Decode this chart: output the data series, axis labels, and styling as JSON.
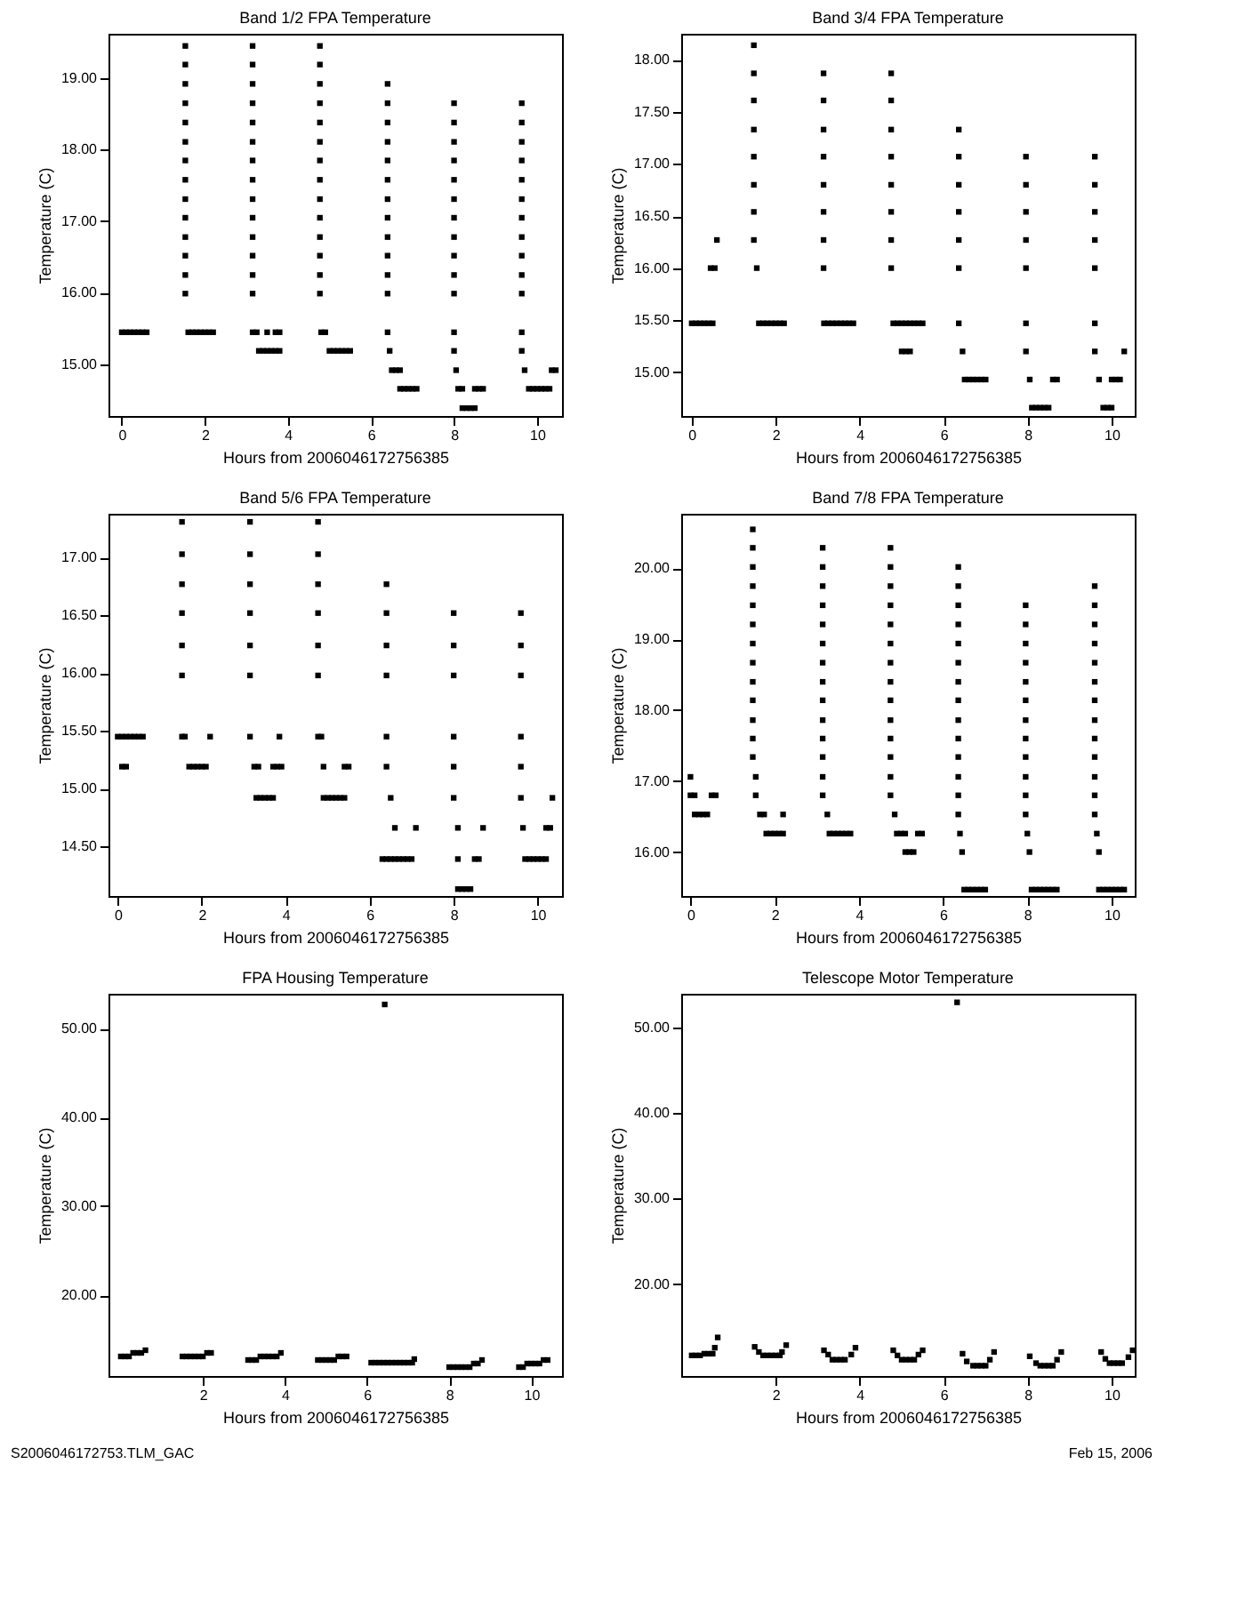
{
  "chart_data": [
    {
      "type": "scatter",
      "title": "Band 1/2 FPA Temperature",
      "xlabel": "Hours from 2006046172756385",
      "ylabel": "Temperature (C)",
      "marker": "square",
      "xlim": [
        -0.32,
        10.6
      ],
      "ylim": [
        14.28,
        19.62
      ],
      "xticks": [
        0,
        2,
        4,
        6,
        8,
        10
      ],
      "yticks": [
        {
          "value": 15,
          "label": "15.00"
        },
        {
          "value": 16,
          "label": "16.00"
        },
        {
          "value": 17,
          "label": "17.00"
        },
        {
          "value": 18,
          "label": "18.00"
        },
        {
          "value": 19,
          "label": "19.00"
        }
      ],
      "series": [
        {
          "color": "#000000",
          "x": [
            0,
            0.1,
            0.2,
            0.3,
            0.4,
            0.5,
            0.6
          ],
          "values": [
            15.45,
            15.45,
            15.45,
            15.45,
            15.45,
            15.45,
            15.45
          ]
        },
        {
          "color": "#000000",
          "x": [
            1.53,
            1.53,
            1.53,
            1.53,
            1.53,
            1.53,
            1.53,
            1.53,
            1.53,
            1.53,
            1.53,
            1.53,
            1.53,
            1.53
          ],
          "values": [
            19.45,
            19.19,
            18.92,
            18.65,
            18.38,
            18.11,
            17.85,
            17.58,
            17.31,
            17.05,
            16.78,
            16.52,
            16.25,
            15.99
          ]
        },
        {
          "color": "#000000",
          "x": [
            1.6,
            1.7,
            1.8,
            1.9,
            2.0,
            2.1,
            2.2
          ],
          "values": [
            15.45,
            15.45,
            15.45,
            15.45,
            15.45,
            15.45,
            15.45
          ]
        },
        {
          "color": "#000000",
          "x": [
            3.15,
            3.15,
            3.15,
            3.15,
            3.15,
            3.15,
            3.15,
            3.15,
            3.15,
            3.15,
            3.15,
            3.15,
            3.15,
            3.15
          ],
          "values": [
            19.45,
            19.19,
            18.92,
            18.65,
            18.38,
            18.11,
            17.85,
            17.58,
            17.31,
            17.05,
            16.78,
            16.52,
            16.25,
            15.99
          ]
        },
        {
          "color": "#000000",
          "x": [
            3.15,
            3.25,
            3.5,
            3.7,
            3.8
          ],
          "values": [
            15.45,
            15.45,
            15.45,
            15.45,
            15.45
          ]
        },
        {
          "color": "#000000",
          "x": [
            3.3,
            3.4,
            3.5,
            3.6,
            3.7,
            3.8
          ],
          "values": [
            15.19,
            15.19,
            15.19,
            15.19,
            15.19,
            15.19
          ]
        },
        {
          "color": "#000000",
          "x": [
            4.77,
            4.77,
            4.77,
            4.77,
            4.77,
            4.77,
            4.77,
            4.77,
            4.77,
            4.77,
            4.77,
            4.77,
            4.77,
            4.77
          ],
          "values": [
            19.45,
            19.19,
            18.92,
            18.65,
            18.38,
            18.11,
            17.85,
            17.58,
            17.31,
            17.05,
            16.78,
            16.52,
            16.25,
            15.99
          ]
        },
        {
          "color": "#000000",
          "x": [
            4.8,
            4.9
          ],
          "values": [
            15.45,
            15.45
          ]
        },
        {
          "color": "#000000",
          "x": [
            5.0,
            5.1,
            5.2,
            5.3,
            5.4,
            5.5
          ],
          "values": [
            15.19,
            15.19,
            15.19,
            15.19,
            15.19,
            15.19
          ]
        },
        {
          "color": "#000000",
          "x": [
            6.4,
            6.4,
            6.4,
            6.4,
            6.4,
            6.4,
            6.4,
            6.4,
            6.4,
            6.4,
            6.4,
            6.4,
            6.4
          ],
          "values": [
            18.92,
            18.65,
            18.38,
            18.11,
            17.85,
            17.58,
            17.31,
            17.05,
            16.78,
            16.52,
            16.25,
            15.99,
            15.45
          ]
        },
        {
          "color": "#000000",
          "x": [
            6.45
          ],
          "values": [
            15.19
          ]
        },
        {
          "color": "#000000",
          "x": [
            6.5,
            6.6,
            6.7
          ],
          "values": [
            14.92,
            14.92,
            14.92
          ]
        },
        {
          "color": "#000000",
          "x": [
            6.7,
            6.8,
            6.9,
            7.0,
            7.1
          ],
          "values": [
            14.66,
            14.66,
            14.66,
            14.66,
            14.66
          ]
        },
        {
          "color": "#000000",
          "x": [
            8.0,
            8.0,
            8.0,
            8.0,
            8.0,
            8.0,
            8.0,
            8.0,
            8.0,
            8.0,
            8.0,
            8.0,
            8.0
          ],
          "values": [
            18.65,
            18.38,
            18.11,
            17.85,
            17.58,
            17.31,
            17.05,
            16.78,
            16.52,
            16.25,
            15.99,
            15.45,
            15.19
          ]
        },
        {
          "color": "#000000",
          "x": [
            8.05
          ],
          "values": [
            14.92
          ]
        },
        {
          "color": "#000000",
          "x": [
            8.1,
            8.2,
            8.5,
            8.6,
            8.7
          ],
          "values": [
            14.66,
            14.66,
            14.66,
            14.66,
            14.66
          ]
        },
        {
          "color": "#000000",
          "x": [
            8.2,
            8.3,
            8.4,
            8.5
          ],
          "values": [
            14.39,
            14.39,
            14.39,
            14.39
          ]
        },
        {
          "color": "#000000",
          "x": [
            9.63,
            9.63,
            9.63,
            9.63,
            9.63,
            9.63,
            9.63,
            9.63,
            9.63,
            9.63,
            9.63,
            9.63,
            9.63
          ],
          "values": [
            18.65,
            18.38,
            18.11,
            17.85,
            17.58,
            17.31,
            17.05,
            16.78,
            16.52,
            16.25,
            15.99,
            15.45,
            15.19
          ]
        },
        {
          "color": "#000000",
          "x": [
            9.7
          ],
          "values": [
            14.92
          ]
        },
        {
          "color": "#000000",
          "x": [
            9.8,
            9.9,
            10.0,
            10.1,
            10.2,
            10.3
          ],
          "values": [
            14.66,
            14.66,
            14.66,
            14.66,
            14.66,
            14.66
          ]
        },
        {
          "color": "#000000",
          "x": [
            10.35,
            10.45
          ],
          "values": [
            14.92,
            14.92
          ]
        }
      ]
    },
    {
      "type": "scatter",
      "title": "Band 3/4 FPA Temperature",
      "xlabel": "Hours from 2006046172756385",
      "ylabel": "Temperature (C)",
      "marker": "square",
      "xlim": [
        -0.25,
        10.55
      ],
      "ylim": [
        14.58,
        18.25
      ],
      "xticks": [
        0,
        2,
        4,
        6,
        8,
        10
      ],
      "yticks": [
        {
          "value": 15,
          "label": "15.00"
        },
        {
          "value": 15.5,
          "label": "15.50"
        },
        {
          "value": 16,
          "label": "16.00"
        },
        {
          "value": 16.5,
          "label": "16.50"
        },
        {
          "value": 17,
          "label": "17.00"
        },
        {
          "value": 17.5,
          "label": "17.50"
        },
        {
          "value": 18,
          "label": "18.00"
        }
      ],
      "series": [
        {
          "color": "#000000",
          "x": [
            0,
            0.1,
            0.2,
            0.3,
            0.4,
            0.5
          ],
          "values": [
            15.47,
            15.47,
            15.47,
            15.47,
            15.47,
            15.47
          ]
        },
        {
          "color": "#000000",
          "x": [
            0.45,
            0.55
          ],
          "values": [
            16.0,
            16.0
          ]
        },
        {
          "color": "#000000",
          "x": [
            0.6
          ],
          "values": [
            16.27
          ]
        },
        {
          "color": "#000000",
          "x": [
            1.48,
            1.48,
            1.48,
            1.48,
            1.48,
            1.48,
            1.48,
            1.48
          ],
          "values": [
            18.14,
            17.87,
            17.61,
            17.33,
            17.07,
            16.8,
            16.54,
            16.27
          ]
        },
        {
          "color": "#000000",
          "x": [
            1.55
          ],
          "values": [
            16.0
          ]
        },
        {
          "color": "#000000",
          "x": [
            1.6,
            1.7,
            1.8,
            1.9,
            2.0,
            2.1,
            2.2
          ],
          "values": [
            15.47,
            15.47,
            15.47,
            15.47,
            15.47,
            15.47,
            15.47
          ]
        },
        {
          "color": "#000000",
          "x": [
            3.14,
            3.14,
            3.14,
            3.14,
            3.14,
            3.14,
            3.14,
            3.14
          ],
          "values": [
            17.87,
            17.61,
            17.33,
            17.07,
            16.8,
            16.54,
            16.27,
            16.0
          ]
        },
        {
          "color": "#000000",
          "x": [
            3.15,
            3.25,
            3.35,
            3.45,
            3.55,
            3.65,
            3.75,
            3.85
          ],
          "values": [
            15.47,
            15.47,
            15.47,
            15.47,
            15.47,
            15.47,
            15.47,
            15.47
          ]
        },
        {
          "color": "#000000",
          "x": [
            4.75,
            4.75,
            4.75,
            4.75,
            4.75,
            4.75,
            4.75,
            4.75
          ],
          "values": [
            17.87,
            17.61,
            17.33,
            17.07,
            16.8,
            16.54,
            16.27,
            16.0
          ]
        },
        {
          "color": "#000000",
          "x": [
            4.8,
            4.9,
            5.0,
            5.1,
            5.2,
            5.3,
            5.4,
            5.5
          ],
          "values": [
            15.47,
            15.47,
            15.47,
            15.47,
            15.47,
            15.47,
            15.47,
            15.47
          ]
        },
        {
          "color": "#000000",
          "x": [
            5.0,
            5.1,
            5.2
          ],
          "values": [
            15.2,
            15.2,
            15.2
          ]
        },
        {
          "color": "#000000",
          "x": [
            6.36,
            6.36,
            6.36,
            6.36,
            6.36,
            6.36,
            6.36
          ],
          "values": [
            17.33,
            17.07,
            16.8,
            16.54,
            16.27,
            16.0,
            15.47
          ]
        },
        {
          "color": "#000000",
          "x": [
            6.45
          ],
          "values": [
            15.2
          ]
        },
        {
          "color": "#000000",
          "x": [
            6.5,
            6.6,
            6.7,
            6.8,
            6.9,
            7.0
          ],
          "values": [
            14.93,
            14.93,
            14.93,
            14.93,
            14.93,
            14.93
          ]
        },
        {
          "color": "#000000",
          "x": [
            7.96,
            7.96,
            7.96,
            7.96,
            7.96,
            7.96,
            7.96
          ],
          "values": [
            17.07,
            16.8,
            16.54,
            16.27,
            16.0,
            15.47,
            15.2
          ]
        },
        {
          "color": "#000000",
          "x": [
            8.05,
            8.6,
            8.7
          ],
          "values": [
            14.93,
            14.93,
            14.93
          ]
        },
        {
          "color": "#000000",
          "x": [
            8.1,
            8.2,
            8.3,
            8.4,
            8.5
          ],
          "values": [
            14.66,
            14.66,
            14.66,
            14.66,
            14.66
          ]
        },
        {
          "color": "#000000",
          "x": [
            9.6,
            9.6,
            9.6,
            9.6,
            9.6,
            9.6,
            9.6
          ],
          "values": [
            17.07,
            16.8,
            16.54,
            16.27,
            16.0,
            15.47,
            15.2
          ]
        },
        {
          "color": "#000000",
          "x": [
            9.7,
            10.0,
            10.1,
            10.2
          ],
          "values": [
            14.93,
            14.93,
            14.93,
            14.93
          ]
        },
        {
          "color": "#000000",
          "x": [
            9.8,
            9.9,
            10.0
          ],
          "values": [
            14.66,
            14.66,
            14.66
          ]
        },
        {
          "color": "#000000",
          "x": [
            10.3
          ],
          "values": [
            15.2
          ]
        }
      ]
    },
    {
      "type": "scatter",
      "title": "Band 5/6 FPA Temperature",
      "xlabel": "Hours from 2006046172756385",
      "ylabel": "Temperature (C)",
      "marker": "square",
      "xlim": [
        -0.22,
        10.58
      ],
      "ylim": [
        14.07,
        17.38
      ],
      "xticks": [
        0,
        2,
        4,
        6,
        8,
        10
      ],
      "yticks": [
        {
          "value": 14.5,
          "label": "14.50"
        },
        {
          "value": 15,
          "label": "15.00"
        },
        {
          "value": 15.5,
          "label": "15.50"
        },
        {
          "value": 16,
          "label": "16.00"
        },
        {
          "value": 16.5,
          "label": "16.50"
        },
        {
          "value": 17,
          "label": "17.00"
        }
      ],
      "series": [
        {
          "color": "#000000",
          "x": [
            0,
            0.1,
            0.2,
            0.3,
            0.4,
            0.5,
            0.6
          ],
          "values": [
            15.45,
            15.45,
            15.45,
            15.45,
            15.45,
            15.45,
            15.45
          ]
        },
        {
          "color": "#000000",
          "x": [
            0.1,
            0.2
          ],
          "values": [
            15.19,
            15.19
          ]
        },
        {
          "color": "#000000",
          "x": [
            1.53,
            1.53,
            1.53,
            1.53,
            1.53,
            1.53,
            1.53
          ],
          "values": [
            17.31,
            17.03,
            16.77,
            16.52,
            16.24,
            15.98,
            15.45
          ]
        },
        {
          "color": "#000000",
          "x": [
            1.6,
            2.2
          ],
          "values": [
            15.45,
            15.45
          ]
        },
        {
          "color": "#000000",
          "x": [
            1.7,
            1.8,
            1.9,
            2.0,
            2.1
          ],
          "values": [
            15.19,
            15.19,
            15.19,
            15.19,
            15.19
          ]
        },
        {
          "color": "#000000",
          "x": [
            3.15,
            3.15,
            3.15,
            3.15,
            3.15,
            3.15,
            3.15
          ],
          "values": [
            17.31,
            17.03,
            16.77,
            16.52,
            16.24,
            15.98,
            15.45
          ]
        },
        {
          "color": "#000000",
          "x": [
            3.85
          ],
          "values": [
            15.45
          ]
        },
        {
          "color": "#000000",
          "x": [
            3.25,
            3.35,
            3.7,
            3.8,
            3.9
          ],
          "values": [
            15.19,
            15.19,
            15.19,
            15.19,
            15.19
          ]
        },
        {
          "color": "#000000",
          "x": [
            3.3,
            3.4,
            3.5,
            3.6,
            3.7
          ],
          "values": [
            14.92,
            14.92,
            14.92,
            14.92,
            14.92
          ]
        },
        {
          "color": "#000000",
          "x": [
            4.77,
            4.77,
            4.77,
            4.77,
            4.77,
            4.77,
            4.77
          ],
          "values": [
            17.31,
            17.03,
            16.77,
            16.52,
            16.24,
            15.98,
            15.45
          ]
        },
        {
          "color": "#000000",
          "x": [
            4.85
          ],
          "values": [
            15.45
          ]
        },
        {
          "color": "#000000",
          "x": [
            4.9,
            5.4,
            5.5
          ],
          "values": [
            15.19,
            15.19,
            15.19
          ]
        },
        {
          "color": "#000000",
          "x": [
            4.9,
            5.0,
            5.1,
            5.2,
            5.3,
            5.4
          ],
          "values": [
            14.92,
            14.92,
            14.92,
            14.92,
            14.92,
            14.92
          ]
        },
        {
          "color": "#000000",
          "x": [
            6.4,
            6.4,
            6.4,
            6.4,
            6.4,
            6.4
          ],
          "values": [
            16.77,
            16.52,
            16.24,
            15.98,
            15.45,
            15.19
          ]
        },
        {
          "color": "#000000",
          "x": [
            6.5
          ],
          "values": [
            14.92
          ]
        },
        {
          "color": "#000000",
          "x": [
            6.6,
            7.1
          ],
          "values": [
            14.66,
            14.66
          ]
        },
        {
          "color": "#000000",
          "x": [
            6.3,
            6.4,
            6.5,
            6.6,
            6.7,
            6.8,
            6.9,
            7.0
          ],
          "values": [
            14.39,
            14.39,
            14.39,
            14.39,
            14.39,
            14.39,
            14.39,
            14.39
          ]
        },
        {
          "color": "#000000",
          "x": [
            8.0,
            8.0,
            8.0,
            8.0,
            8.0,
            8.0
          ],
          "values": [
            16.52,
            16.24,
            15.98,
            15.45,
            15.19,
            14.92
          ]
        },
        {
          "color": "#000000",
          "x": [
            8.1,
            8.7
          ],
          "values": [
            14.66,
            14.66
          ]
        },
        {
          "color": "#000000",
          "x": [
            8.1,
            8.5,
            8.6
          ],
          "values": [
            14.39,
            14.39,
            14.39
          ]
        },
        {
          "color": "#000000",
          "x": [
            8.1,
            8.2,
            8.3,
            8.4
          ],
          "values": [
            14.13,
            14.13,
            14.13,
            14.13
          ]
        },
        {
          "color": "#000000",
          "x": [
            9.6,
            9.6,
            9.6,
            9.6,
            9.6,
            9.6
          ],
          "values": [
            16.52,
            16.24,
            15.98,
            15.45,
            15.19,
            14.92
          ]
        },
        {
          "color": "#000000",
          "x": [
            9.65,
            10.2,
            10.3
          ],
          "values": [
            14.66,
            14.66,
            14.66
          ]
        },
        {
          "color": "#000000",
          "x": [
            10.35
          ],
          "values": [
            14.92
          ]
        },
        {
          "color": "#000000",
          "x": [
            9.7,
            9.8,
            9.9,
            10.0,
            10.1,
            10.2
          ],
          "values": [
            14.39,
            14.39,
            14.39,
            14.39,
            14.39,
            14.39
          ]
        }
      ]
    },
    {
      "type": "scatter",
      "title": "Band 7/8 FPA Temperature",
      "xlabel": "Hours from 2006046172756385",
      "ylabel": "Temperature (C)",
      "marker": "square",
      "xlim": [
        -0.22,
        10.55
      ],
      "ylim": [
        15.38,
        20.77
      ],
      "xticks": [
        0,
        2,
        4,
        6,
        8,
        10
      ],
      "yticks": [
        {
          "value": 16,
          "label": "16.00"
        },
        {
          "value": 17,
          "label": "17.00"
        },
        {
          "value": 18,
          "label": "18.00"
        },
        {
          "value": 19,
          "label": "19.00"
        },
        {
          "value": 20,
          "label": "20.00"
        }
      ],
      "series": [
        {
          "color": "#000000",
          "x": [
            0
          ],
          "values": [
            17.06
          ]
        },
        {
          "color": "#000000",
          "x": [
            0,
            0.1,
            0.5,
            0.6
          ],
          "values": [
            16.8,
            16.8,
            16.8,
            16.8
          ]
        },
        {
          "color": "#000000",
          "x": [
            0.1,
            0.2,
            0.3,
            0.4
          ],
          "values": [
            16.53,
            16.53,
            16.53,
            16.53
          ]
        },
        {
          "color": "#000000",
          "x": [
            1.48,
            1.48,
            1.48,
            1.48,
            1.48,
            1.48,
            1.48,
            1.48,
            1.48,
            1.48,
            1.48,
            1.48,
            1.48
          ],
          "values": [
            20.55,
            20.29,
            20.02,
            19.75,
            19.48,
            19.21,
            18.94,
            18.67,
            18.4,
            18.14,
            17.86,
            17.6,
            17.34
          ]
        },
        {
          "color": "#000000",
          "x": [
            1.55,
            1.55
          ],
          "values": [
            17.06,
            16.8
          ]
        },
        {
          "color": "#000000",
          "x": [
            1.65,
            1.75,
            2.2
          ],
          "values": [
            16.53,
            16.53,
            16.53
          ]
        },
        {
          "color": "#000000",
          "x": [
            1.8,
            1.9,
            2.0,
            2.1,
            2.2
          ],
          "values": [
            16.26,
            16.26,
            16.26,
            16.26,
            16.26
          ]
        },
        {
          "color": "#000000",
          "x": [
            3.14,
            3.14,
            3.14,
            3.14,
            3.14,
            3.14,
            3.14,
            3.14,
            3.14,
            3.14,
            3.14,
            3.14,
            3.14,
            3.14
          ],
          "values": [
            20.29,
            20.02,
            19.75,
            19.48,
            19.21,
            18.94,
            18.67,
            18.4,
            18.14,
            17.86,
            17.6,
            17.34,
            17.06,
            16.8
          ]
        },
        {
          "color": "#000000",
          "x": [
            3.25
          ],
          "values": [
            16.53
          ]
        },
        {
          "color": "#000000",
          "x": [
            3.3,
            3.4,
            3.5,
            3.6,
            3.7,
            3.8
          ],
          "values": [
            16.26,
            16.26,
            16.26,
            16.26,
            16.26,
            16.26
          ]
        },
        {
          "color": "#000000",
          "x": [
            4.75,
            4.75,
            4.75,
            4.75,
            4.75,
            4.75,
            4.75,
            4.75,
            4.75,
            4.75,
            4.75,
            4.75,
            4.75,
            4.75
          ],
          "values": [
            20.29,
            20.02,
            19.75,
            19.48,
            19.21,
            18.94,
            18.67,
            18.4,
            18.14,
            17.86,
            17.6,
            17.34,
            17.06,
            16.8
          ]
        },
        {
          "color": "#000000",
          "x": [
            4.85
          ],
          "values": [
            16.53
          ]
        },
        {
          "color": "#000000",
          "x": [
            4.9,
            5.0,
            5.1,
            5.4,
            5.5
          ],
          "values": [
            16.26,
            16.26,
            16.26,
            16.26,
            16.26
          ]
        },
        {
          "color": "#000000",
          "x": [
            5.1,
            5.2,
            5.3
          ],
          "values": [
            16.0,
            16.0,
            16.0
          ]
        },
        {
          "color": "#000000",
          "x": [
            6.36,
            6.36,
            6.36,
            6.36,
            6.36,
            6.36,
            6.36,
            6.36,
            6.36,
            6.36,
            6.36,
            6.36,
            6.36,
            6.36
          ],
          "values": [
            20.02,
            19.75,
            19.48,
            19.21,
            18.94,
            18.67,
            18.4,
            18.14,
            17.86,
            17.6,
            17.34,
            17.06,
            16.8,
            16.53
          ]
        },
        {
          "color": "#000000",
          "x": [
            6.4
          ],
          "values": [
            16.26
          ]
        },
        {
          "color": "#000000",
          "x": [
            6.45
          ],
          "values": [
            16.0
          ]
        },
        {
          "color": "#000000",
          "x": [
            6.5,
            6.6,
            6.7,
            6.8,
            6.9,
            7.0
          ],
          "values": [
            15.47,
            15.47,
            15.47,
            15.47,
            15.47,
            15.47
          ]
        },
        {
          "color": "#000000",
          "x": [
            7.96,
            7.96,
            7.96,
            7.96,
            7.96,
            7.96,
            7.96,
            7.96,
            7.96,
            7.96,
            7.96,
            7.96
          ],
          "values": [
            19.48,
            19.21,
            18.94,
            18.67,
            18.4,
            18.14,
            17.86,
            17.6,
            17.34,
            17.06,
            16.8,
            16.53
          ]
        },
        {
          "color": "#000000",
          "x": [
            8.0
          ],
          "values": [
            16.26
          ]
        },
        {
          "color": "#000000",
          "x": [
            8.05
          ],
          "values": [
            16.0
          ]
        },
        {
          "color": "#000000",
          "x": [
            8.1,
            8.2,
            8.3,
            8.4,
            8.5,
            8.6,
            8.7
          ],
          "values": [
            15.47,
            15.47,
            15.47,
            15.47,
            15.47,
            15.47,
            15.47
          ]
        },
        {
          "color": "#000000",
          "x": [
            9.6,
            9.6,
            9.6,
            9.6,
            9.6,
            9.6,
            9.6,
            9.6,
            9.6,
            9.6,
            9.6,
            9.6,
            9.6
          ],
          "values": [
            19.75,
            19.48,
            19.21,
            18.94,
            18.67,
            18.4,
            18.14,
            17.86,
            17.6,
            17.34,
            17.06,
            16.8,
            16.53
          ]
        },
        {
          "color": "#000000",
          "x": [
            9.65
          ],
          "values": [
            16.26
          ]
        },
        {
          "color": "#000000",
          "x": [
            9.7
          ],
          "values": [
            16.0
          ]
        },
        {
          "color": "#000000",
          "x": [
            9.7,
            9.8,
            9.9,
            10.0,
            10.1,
            10.2,
            10.3
          ],
          "values": [
            15.47,
            15.47,
            15.47,
            15.47,
            15.47,
            15.47,
            15.47
          ]
        }
      ]
    },
    {
      "type": "scatter",
      "title": "FPA Housing Temperature",
      "xlabel": "Hours from 2006046172756385",
      "ylabel": "Temperature (C)",
      "marker": "square",
      "xlim": [
        -0.3,
        10.75
      ],
      "ylim": [
        10.9,
        53.9
      ],
      "xticks": [
        2,
        4,
        6,
        8,
        10
      ],
      "yticks": [
        {
          "value": 20,
          "label": "20.00"
        },
        {
          "value": 30,
          "label": "30.00"
        },
        {
          "value": 40,
          "label": "40.00"
        },
        {
          "value": 50,
          "label": "50.00"
        }
      ],
      "annotations": [
        "S2006046172753.TLM_GAC"
      ],
      "series": [
        {
          "color": "#000000",
          "x": [
            0,
            0.1,
            0.2,
            0.3,
            0.4,
            0.5,
            0.6
          ],
          "values": [
            13.1,
            13.1,
            13.1,
            13.5,
            13.5,
            13.5,
            13.8
          ]
        },
        {
          "color": "#000000",
          "x": [
            1.5,
            1.6,
            1.7,
            1.8,
            1.9,
            2.0,
            2.1,
            2.2
          ],
          "values": [
            13.1,
            13.1,
            13.1,
            13.1,
            13.1,
            13.1,
            13.5,
            13.5
          ]
        },
        {
          "color": "#000000",
          "x": [
            3.1,
            3.2,
            3.3,
            3.4,
            3.5,
            3.6,
            3.7,
            3.8,
            3.9
          ],
          "values": [
            12.7,
            12.7,
            12.7,
            13.1,
            13.1,
            13.1,
            13.1,
            13.1,
            13.5
          ]
        },
        {
          "color": "#000000",
          "x": [
            4.8,
            4.9,
            5.0,
            5.1,
            5.2,
            5.3,
            5.4,
            5.5
          ],
          "values": [
            12.7,
            12.7,
            12.7,
            12.7,
            12.7,
            13.1,
            13.1,
            13.1
          ]
        },
        {
          "color": "#000000",
          "x": [
            6.1,
            6.2,
            6.3,
            6.4,
            6.5,
            6.6,
            6.7,
            6.8,
            6.9,
            7.0,
            7.1,
            7.15
          ],
          "values": [
            12.4,
            12.4,
            12.4,
            12.4,
            12.4,
            12.4,
            12.4,
            12.4,
            12.4,
            12.4,
            12.4,
            12.8
          ]
        },
        {
          "color": "#000000",
          "x": [
            6.43
          ],
          "values": [
            52.7
          ]
        },
        {
          "color": "#000000",
          "x": [
            8.0,
            8.1,
            8.2,
            8.3,
            8.4,
            8.5,
            8.6,
            8.7,
            8.8
          ],
          "values": [
            11.9,
            11.9,
            11.9,
            11.9,
            11.9,
            11.9,
            12.3,
            12.3,
            12.7
          ]
        },
        {
          "color": "#000000",
          "x": [
            9.7,
            9.8,
            9.9,
            10.0,
            10.1,
            10.2,
            10.3,
            10.4
          ],
          "values": [
            11.9,
            11.9,
            12.3,
            12.3,
            12.3,
            12.3,
            12.7,
            12.7
          ]
        }
      ]
    },
    {
      "type": "scatter",
      "title": "Telescope Motor Temperature",
      "xlabel": "Hours from 2006046172756385",
      "ylabel": "Temperature (C)",
      "marker": "square",
      "xlim": [
        -0.25,
        10.55
      ],
      "ylim": [
        9.3,
        53.9
      ],
      "xticks": [
        2,
        4,
        6,
        8,
        10
      ],
      "yticks": [
        {
          "value": 20,
          "label": "20.00"
        },
        {
          "value": 30,
          "label": "30.00"
        },
        {
          "value": 40,
          "label": "40.00"
        },
        {
          "value": 50,
          "label": "50.00"
        }
      ],
      "annotations": [
        "Feb 15, 2006"
      ],
      "series": [
        {
          "color": "#000000",
          "x": [
            0,
            0.1,
            0.2,
            0.3,
            0.4,
            0.5,
            0.55,
            0.62
          ],
          "values": [
            11.7,
            11.7,
            11.7,
            11.9,
            11.9,
            11.9,
            12.6,
            13.8
          ]
        },
        {
          "color": "#000000",
          "x": [
            1.5,
            1.6,
            1.7,
            1.8,
            1.9,
            2.0,
            2.1,
            2.15,
            2.25
          ],
          "values": [
            12.7,
            12.1,
            11.7,
            11.7,
            11.7,
            11.7,
            11.7,
            12.1,
            12.9
          ]
        },
        {
          "color": "#000000",
          "x": [
            3.15,
            3.25,
            3.35,
            3.45,
            3.55,
            3.65,
            3.8,
            3.9
          ],
          "values": [
            12.3,
            11.8,
            11.2,
            11.2,
            11.2,
            11.2,
            11.8,
            12.6
          ]
        },
        {
          "color": "#000000",
          "x": [
            4.8,
            4.9,
            5.0,
            5.1,
            5.2,
            5.3,
            5.4,
            5.5
          ],
          "values": [
            12.3,
            11.7,
            11.2,
            11.2,
            11.2,
            11.2,
            11.8,
            12.3
          ]
        },
        {
          "color": "#000000",
          "x": [
            6.45,
            6.55,
            6.7,
            6.8,
            6.9,
            7.0,
            7.1,
            7.2
          ],
          "values": [
            11.9,
            11.0,
            10.5,
            10.5,
            10.5,
            10.5,
            11.2,
            12.1
          ]
        },
        {
          "color": "#000000",
          "x": [
            6.32
          ],
          "values": [
            52.9
          ]
        },
        {
          "color": "#000000",
          "x": [
            8.05,
            8.2,
            8.3,
            8.4,
            8.5,
            8.6,
            8.7,
            8.8
          ],
          "values": [
            11.6,
            10.8,
            10.5,
            10.5,
            10.5,
            10.5,
            11.2,
            12.1
          ]
        },
        {
          "color": "#000000",
          "x": [
            9.75,
            9.85,
            9.95,
            10.05,
            10.15,
            10.25,
            10.4,
            10.5
          ],
          "values": [
            12.1,
            11.3,
            10.8,
            10.8,
            10.8,
            10.8,
            11.5,
            12.3
          ]
        }
      ]
    }
  ]
}
